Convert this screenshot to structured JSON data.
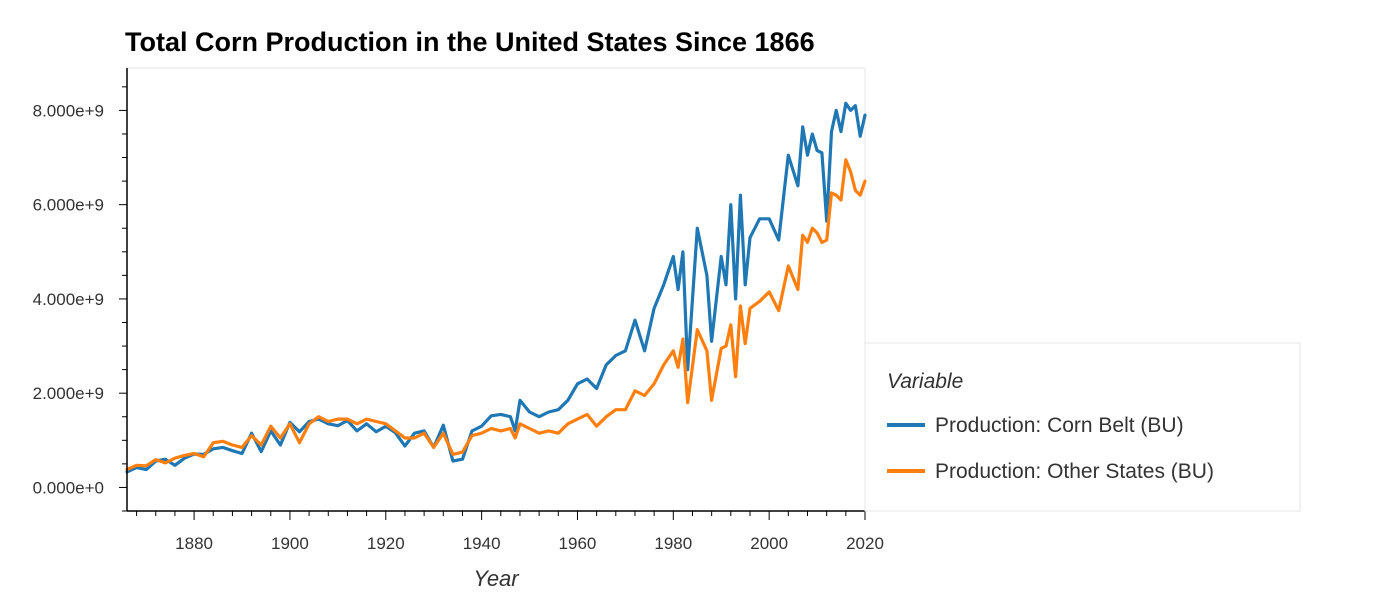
{
  "chart_data": {
    "type": "line",
    "title": "Total Corn Production in the United States Since 1866",
    "xlabel": "Year",
    "ylabel": "",
    "xlim": [
      1866,
      2020
    ],
    "ylim": [
      -500000000,
      8900000000
    ],
    "x_ticks": [
      1880,
      1900,
      1920,
      1940,
      1960,
      1980,
      2000,
      2020
    ],
    "x_tick_labels": [
      "1880",
      "1900",
      "1920",
      "1940",
      "1960",
      "1980",
      "2000",
      "2020"
    ],
    "y_ticks": [
      0,
      2000000000,
      4000000000,
      6000000000,
      8000000000
    ],
    "y_tick_labels": [
      "0.000e+0",
      "2.000e+9",
      "4.000e+9",
      "6.000e+9",
      "8.000e+9"
    ],
    "grid": false,
    "legend": {
      "title": "Variable",
      "placement": "right"
    },
    "series": [
      {
        "name": "Production: Corn Belt (BU)",
        "color": "#1f77b4",
        "points": [
          [
            1866,
            330000000
          ],
          [
            1868,
            420000000
          ],
          [
            1870,
            380000000
          ],
          [
            1872,
            560000000
          ],
          [
            1874,
            600000000
          ],
          [
            1876,
            470000000
          ],
          [
            1878,
            620000000
          ],
          [
            1880,
            710000000
          ],
          [
            1882,
            700000000
          ],
          [
            1884,
            820000000
          ],
          [
            1886,
            850000000
          ],
          [
            1888,
            780000000
          ],
          [
            1890,
            720000000
          ],
          [
            1892,
            1150000000
          ],
          [
            1894,
            760000000
          ],
          [
            1896,
            1200000000
          ],
          [
            1898,
            900000000
          ],
          [
            1900,
            1380000000
          ],
          [
            1902,
            1180000000
          ],
          [
            1904,
            1400000000
          ],
          [
            1906,
            1450000000
          ],
          [
            1908,
            1350000000
          ],
          [
            1910,
            1310000000
          ],
          [
            1912,
            1420000000
          ],
          [
            1914,
            1200000000
          ],
          [
            1916,
            1350000000
          ],
          [
            1918,
            1180000000
          ],
          [
            1920,
            1300000000
          ],
          [
            1922,
            1160000000
          ],
          [
            1924,
            880000000
          ],
          [
            1926,
            1150000000
          ],
          [
            1928,
            1200000000
          ],
          [
            1930,
            850000000
          ],
          [
            1932,
            1320000000
          ],
          [
            1934,
            560000000
          ],
          [
            1936,
            600000000
          ],
          [
            1938,
            1200000000
          ],
          [
            1940,
            1300000000
          ],
          [
            1942,
            1520000000
          ],
          [
            1944,
            1550000000
          ],
          [
            1946,
            1500000000
          ],
          [
            1947,
            1200000000
          ],
          [
            1948,
            1850000000
          ],
          [
            1950,
            1600000000
          ],
          [
            1952,
            1500000000
          ],
          [
            1954,
            1600000000
          ],
          [
            1956,
            1650000000
          ],
          [
            1958,
            1850000000
          ],
          [
            1960,
            2200000000
          ],
          [
            1962,
            2300000000
          ],
          [
            1964,
            2100000000
          ],
          [
            1966,
            2600000000
          ],
          [
            1968,
            2800000000
          ],
          [
            1970,
            2900000000
          ],
          [
            1972,
            3550000000
          ],
          [
            1974,
            2900000000
          ],
          [
            1976,
            3800000000
          ],
          [
            1978,
            4300000000
          ],
          [
            1980,
            4900000000
          ],
          [
            1981,
            4200000000
          ],
          [
            1982,
            5000000000
          ],
          [
            1983,
            2500000000
          ],
          [
            1985,
            5500000000
          ],
          [
            1987,
            4500000000
          ],
          [
            1988,
            3100000000
          ],
          [
            1990,
            4900000000
          ],
          [
            1991,
            4300000000
          ],
          [
            1992,
            6000000000
          ],
          [
            1993,
            4000000000
          ],
          [
            1994,
            6200000000
          ],
          [
            1995,
            4300000000
          ],
          [
            1996,
            5300000000
          ],
          [
            1998,
            5700000000
          ],
          [
            2000,
            5700000000
          ],
          [
            2002,
            5250000000
          ],
          [
            2004,
            7050000000
          ],
          [
            2006,
            6400000000
          ],
          [
            2007,
            7650000000
          ],
          [
            2008,
            7050000000
          ],
          [
            2009,
            7500000000
          ],
          [
            2010,
            7150000000
          ],
          [
            2011,
            7100000000
          ],
          [
            2012,
            5650000000
          ],
          [
            2013,
            7550000000
          ],
          [
            2014,
            8000000000
          ],
          [
            2015,
            7550000000
          ],
          [
            2016,
            8150000000
          ],
          [
            2017,
            8000000000
          ],
          [
            2018,
            8100000000
          ],
          [
            2019,
            7450000000
          ],
          [
            2020,
            7900000000
          ]
        ]
      },
      {
        "name": "Production: Other States (BU)",
        "color": "#ff7f0e",
        "points": [
          [
            1866,
            380000000
          ],
          [
            1868,
            470000000
          ],
          [
            1870,
            460000000
          ],
          [
            1872,
            590000000
          ],
          [
            1874,
            520000000
          ],
          [
            1876,
            620000000
          ],
          [
            1878,
            680000000
          ],
          [
            1880,
            720000000
          ],
          [
            1882,
            650000000
          ],
          [
            1884,
            950000000
          ],
          [
            1886,
            980000000
          ],
          [
            1888,
            900000000
          ],
          [
            1890,
            850000000
          ],
          [
            1892,
            1100000000
          ],
          [
            1894,
            900000000
          ],
          [
            1896,
            1300000000
          ],
          [
            1898,
            1050000000
          ],
          [
            1900,
            1350000000
          ],
          [
            1902,
            950000000
          ],
          [
            1904,
            1350000000
          ],
          [
            1906,
            1500000000
          ],
          [
            1908,
            1400000000
          ],
          [
            1910,
            1450000000
          ],
          [
            1912,
            1450000000
          ],
          [
            1914,
            1350000000
          ],
          [
            1916,
            1450000000
          ],
          [
            1918,
            1400000000
          ],
          [
            1920,
            1350000000
          ],
          [
            1922,
            1200000000
          ],
          [
            1924,
            1050000000
          ],
          [
            1926,
            1050000000
          ],
          [
            1928,
            1150000000
          ],
          [
            1930,
            850000000
          ],
          [
            1932,
            1150000000
          ],
          [
            1934,
            700000000
          ],
          [
            1936,
            750000000
          ],
          [
            1938,
            1100000000
          ],
          [
            1940,
            1150000000
          ],
          [
            1942,
            1250000000
          ],
          [
            1944,
            1200000000
          ],
          [
            1946,
            1250000000
          ],
          [
            1947,
            1050000000
          ],
          [
            1948,
            1350000000
          ],
          [
            1950,
            1250000000
          ],
          [
            1952,
            1150000000
          ],
          [
            1954,
            1200000000
          ],
          [
            1956,
            1150000000
          ],
          [
            1958,
            1350000000
          ],
          [
            1960,
            1450000000
          ],
          [
            1962,
            1550000000
          ],
          [
            1964,
            1300000000
          ],
          [
            1966,
            1500000000
          ],
          [
            1968,
            1650000000
          ],
          [
            1970,
            1650000000
          ],
          [
            1972,
            2050000000
          ],
          [
            1974,
            1950000000
          ],
          [
            1976,
            2200000000
          ],
          [
            1978,
            2600000000
          ],
          [
            1980,
            2900000000
          ],
          [
            1981,
            2550000000
          ],
          [
            1982,
            3150000000
          ],
          [
            1983,
            1800000000
          ],
          [
            1985,
            3350000000
          ],
          [
            1987,
            2900000000
          ],
          [
            1988,
            1850000000
          ],
          [
            1990,
            2950000000
          ],
          [
            1991,
            3000000000
          ],
          [
            1992,
            3450000000
          ],
          [
            1993,
            2350000000
          ],
          [
            1994,
            3850000000
          ],
          [
            1995,
            3050000000
          ],
          [
            1996,
            3800000000
          ],
          [
            1998,
            3950000000
          ],
          [
            2000,
            4150000000
          ],
          [
            2002,
            3750000000
          ],
          [
            2004,
            4700000000
          ],
          [
            2006,
            4200000000
          ],
          [
            2007,
            5350000000
          ],
          [
            2008,
            5200000000
          ],
          [
            2009,
            5500000000
          ],
          [
            2010,
            5400000000
          ],
          [
            2011,
            5200000000
          ],
          [
            2012,
            5250000000
          ],
          [
            2013,
            6250000000
          ],
          [
            2014,
            6200000000
          ],
          [
            2015,
            6100000000
          ],
          [
            2016,
            6950000000
          ],
          [
            2017,
            6700000000
          ],
          [
            2018,
            6300000000
          ],
          [
            2019,
            6200000000
          ],
          [
            2020,
            6500000000
          ]
        ]
      }
    ]
  }
}
